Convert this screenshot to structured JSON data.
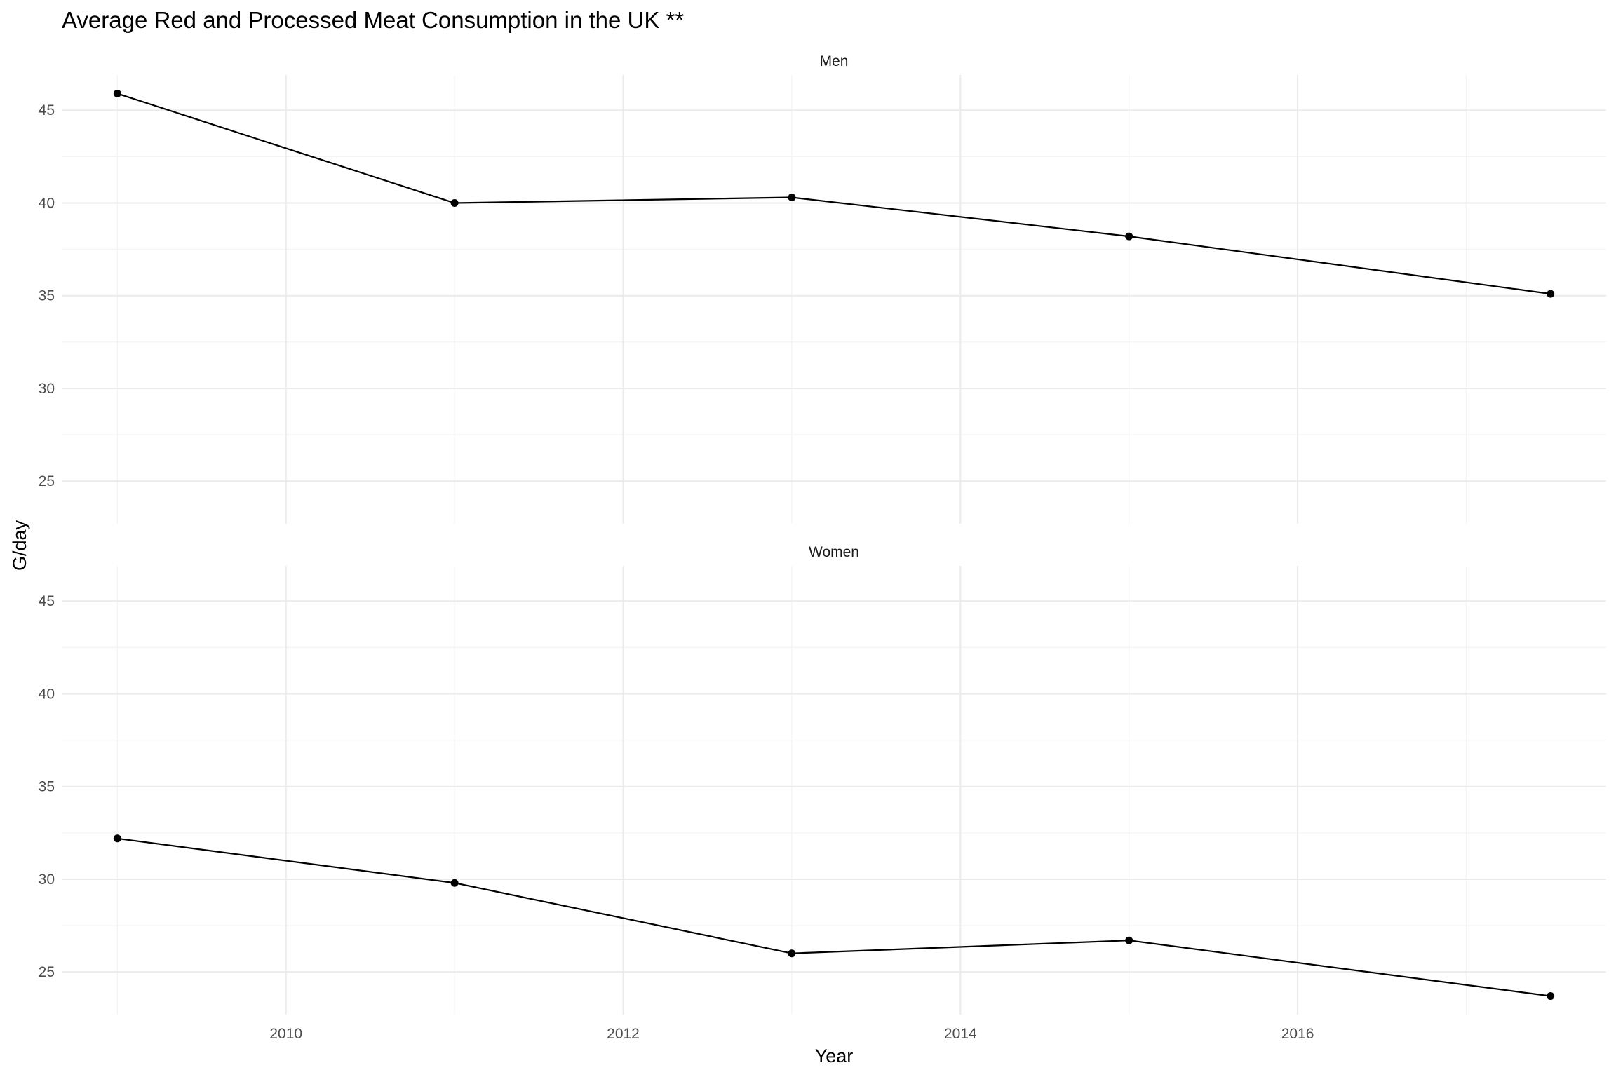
{
  "chart_data": {
    "type": "line",
    "title": "Average Red and Processed Meat Consumption in the UK **",
    "xlabel": "Year",
    "ylabel": "G/day",
    "xlim": [
      2008.67,
      2017.83
    ],
    "ylim": [
      22.7,
      46.9
    ],
    "x_ticks": [
      "2010",
      "2012",
      "2014",
      "2016"
    ],
    "y_ticks": [
      "25",
      "30",
      "35",
      "40",
      "45"
    ],
    "grid": true,
    "legend": "none",
    "panels": [
      {
        "name": "Men",
        "series": [
          {
            "x": [
              2009,
              2011,
              2013,
              2015,
              2017.5
            ],
            "values": [
              45.9,
              40.0,
              40.3,
              38.2,
              35.1
            ]
          }
        ]
      },
      {
        "name": "Women",
        "series": [
          {
            "x": [
              2009,
              2011,
              2013,
              2015,
              2017.5
            ],
            "values": [
              32.2,
              29.8,
              26.0,
              26.7,
              23.7
            ]
          }
        ]
      }
    ]
  }
}
